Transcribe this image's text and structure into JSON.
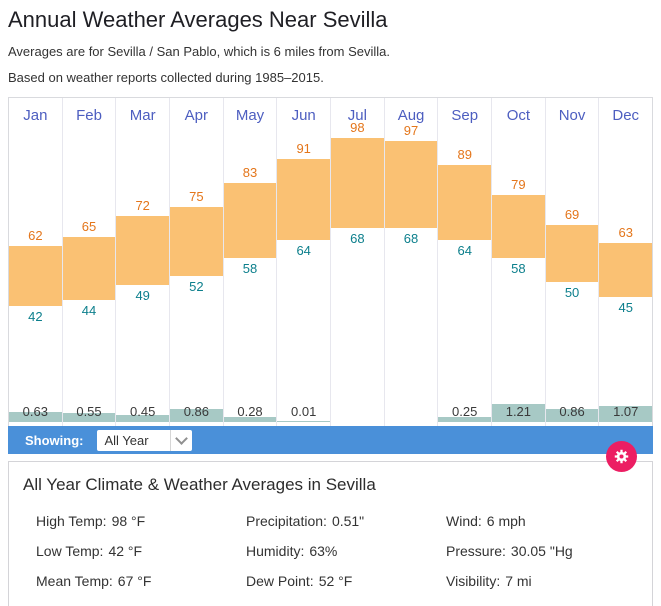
{
  "header": {
    "title": "Annual Weather Averages Near Sevilla",
    "subtitle_location": "Averages are for Sevilla / San Pablo, which is 6 miles from Sevilla.",
    "subtitle_period": "Based on weather reports collected during 1985–2015."
  },
  "toolbar": {
    "showing_label": "Showing:",
    "selected_option": "All Year"
  },
  "icons": {
    "settings": "gear-icon",
    "dropdown": "chevron-down-icon"
  },
  "colors": {
    "toolbar_blue": "#4a90d9",
    "gear_pink": "#ec1e63",
    "temp_bar_orange": "#fac173",
    "high_temp_text": "#e4761b",
    "low_temp_text": "#0c7f8c",
    "precip_bar_teal": "#a7c9c5",
    "month_label_blue": "#4d5ec0"
  },
  "summary": {
    "title": "All Year Climate & Weather Averages in Sevilla",
    "stats": [
      {
        "label": "High Temp:",
        "value": "98 °F"
      },
      {
        "label": "Precipitation:",
        "value": "0.51\""
      },
      {
        "label": "Wind:",
        "value": "6 mph"
      },
      {
        "label": "Low Temp:",
        "value": "42 °F"
      },
      {
        "label": "Humidity:",
        "value": "63%"
      },
      {
        "label": "Pressure:",
        "value": "30.05 \"Hg"
      },
      {
        "label": "Mean Temp:",
        "value": "67 °F"
      },
      {
        "label": "Dew Point:",
        "value": "52 °F"
      },
      {
        "label": "Visibility:",
        "value": "7 mi"
      }
    ]
  },
  "chart_data": {
    "type": "bar",
    "title": "Annual Weather Averages Near Sevilla",
    "categories": [
      "Jan",
      "Feb",
      "Mar",
      "Apr",
      "May",
      "Jun",
      "Jul",
      "Aug",
      "Sep",
      "Oct",
      "Nov",
      "Dec"
    ],
    "series": [
      {
        "name": "High Temp (°F)",
        "values": [
          62,
          65,
          72,
          75,
          83,
          91,
          98,
          97,
          89,
          79,
          69,
          63
        ]
      },
      {
        "name": "Low Temp (°F)",
        "values": [
          42,
          44,
          49,
          52,
          58,
          64,
          68,
          68,
          64,
          58,
          50,
          45
        ]
      },
      {
        "name": "Precipitation (inches)",
        "values": [
          0.63,
          0.55,
          0.45,
          0.86,
          0.28,
          0.01,
          null,
          null,
          0.25,
          1.21,
          0.86,
          1.07
        ]
      }
    ],
    "legend": false,
    "grid": false,
    "layout": "floating orange bars span low→high temp per month with labels above/below; small teal precipitation bars sit along the base with value labels"
  }
}
